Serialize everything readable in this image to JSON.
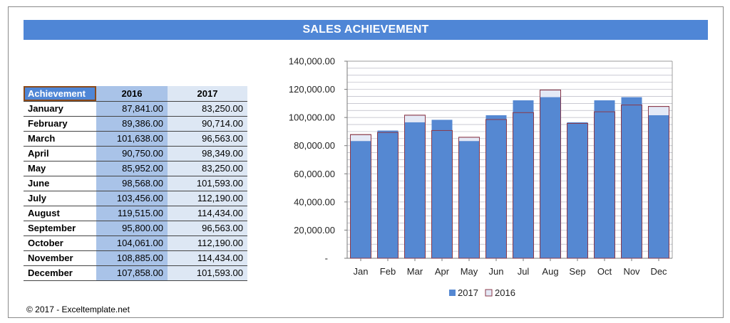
{
  "title": "SALES ACHIEVEMENT",
  "table": {
    "headers": [
      "Achievement",
      "2016",
      "2017"
    ],
    "rows": [
      [
        "January",
        "87,841.00",
        "83,250.00"
      ],
      [
        "February",
        "89,386.00",
        "90,714.00"
      ],
      [
        "March",
        "101,638.00",
        "96,563.00"
      ],
      [
        "April",
        "90,750.00",
        "98,349.00"
      ],
      [
        "May",
        "85,952.00",
        "83,250.00"
      ],
      [
        "June",
        "98,568.00",
        "101,593.00"
      ],
      [
        "July",
        "103,456.00",
        "112,190.00"
      ],
      [
        "August",
        "119,515.00",
        "114,434.00"
      ],
      [
        "September",
        "95,800.00",
        "96,563.00"
      ],
      [
        "October",
        "104,061.00",
        "112,190.00"
      ],
      [
        "November",
        "108,885.00",
        "114,434.00"
      ],
      [
        "December",
        "107,858.00",
        "101,593.00"
      ]
    ]
  },
  "footer": "© 2017 - Exceltemplate.net",
  "colors": {
    "accent": "#4f86d6",
    "bar_2017": "#5588d2",
    "bar_2016_fill": "#e4e9f6",
    "bar_2016_border": "#8b3a4a"
  },
  "chart_data": {
    "type": "bar",
    "categories": [
      "Jan",
      "Feb",
      "Mar",
      "Apr",
      "May",
      "Jun",
      "Jul",
      "Aug",
      "Sep",
      "Oct",
      "Nov",
      "Dec"
    ],
    "series": [
      {
        "name": "2017",
        "values": [
          83250,
          90714,
          96563,
          98349,
          83250,
          101593,
          112190,
          114434,
          96563,
          112190,
          114434,
          101593
        ]
      },
      {
        "name": "2016",
        "values": [
          87841,
          89386,
          101638,
          90750,
          85952,
          98568,
          103456,
          119515,
          95800,
          104061,
          108885,
          107858
        ]
      }
    ],
    "ylim": [
      0,
      140000
    ],
    "yticks": [
      0,
      20000,
      40000,
      60000,
      80000,
      100000,
      120000,
      140000
    ],
    "ytick_labels": [
      "-",
      "20,000.00",
      "40,000.00",
      "60,000.00",
      "80,000.00",
      "100,000.00",
      "120,000.00",
      "140,000.00"
    ],
    "grid": true,
    "legend_position": "bottom",
    "overlap": true
  }
}
